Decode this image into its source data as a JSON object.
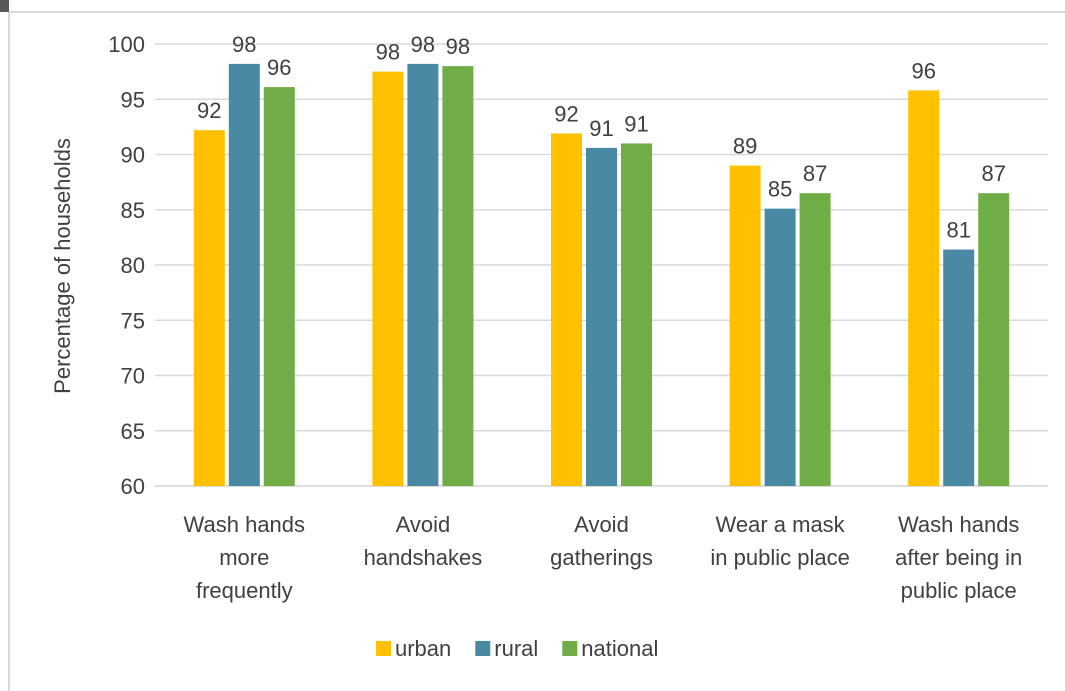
{
  "chart_data": {
    "type": "bar",
    "categories": [
      [
        "Wash hands",
        "more",
        "frequently"
      ],
      [
        "Avoid",
        "handshakes"
      ],
      [
        "Avoid",
        "gatherings"
      ],
      [
        "Wear a mask",
        "in public place"
      ],
      [
        "Wash hands",
        "after being in",
        "public place"
      ]
    ],
    "series": [
      {
        "name": "urban",
        "color": "#FFC000",
        "values": [
          92.2,
          97.5,
          91.9,
          89.0,
          95.8
        ],
        "labels": [
          "92",
          "98",
          "92",
          "89",
          "96"
        ]
      },
      {
        "name": "rural",
        "color": "#4A89A3",
        "values": [
          98.2,
          98.2,
          90.6,
          85.1,
          81.4
        ],
        "labels": [
          "98",
          "98",
          "91",
          "85",
          "81"
        ]
      },
      {
        "name": "national",
        "color": "#70AD47",
        "values": [
          96.1,
          98.0,
          91.0,
          86.5,
          86.5
        ],
        "labels": [
          "96",
          "98",
          "91",
          "87",
          "87"
        ]
      }
    ],
    "ylabel": "Percentage of households",
    "ylim": [
      60,
      100
    ],
    "yticks": [
      60,
      65,
      70,
      75,
      80,
      85,
      90,
      95,
      100
    ],
    "grid": true,
    "legend": "bottom"
  }
}
